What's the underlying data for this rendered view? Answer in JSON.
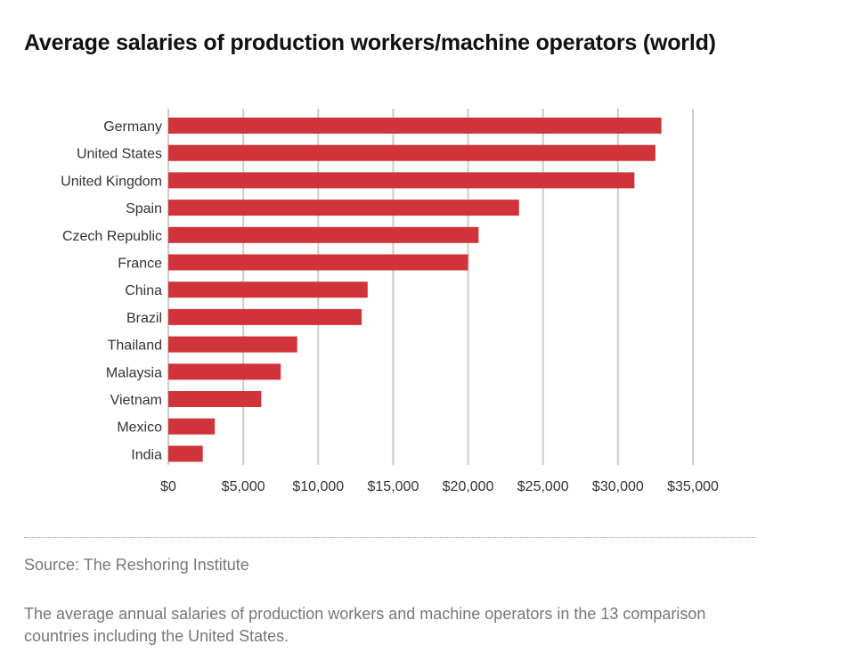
{
  "chart_data": {
    "type": "bar",
    "orientation": "horizontal",
    "title": "Average salaries of production workers/machine operators (world)",
    "categories": [
      "Germany",
      "United States",
      "United Kingdom",
      "Spain",
      "Czech Republic",
      "France",
      "China",
      "Brazil",
      "Thailand",
      "Malaysia",
      "Vietnam",
      "Mexico",
      "India"
    ],
    "values": [
      32900,
      32500,
      31100,
      23400,
      20700,
      20000,
      13300,
      12900,
      8600,
      7500,
      6200,
      3100,
      2300
    ],
    "xlim": [
      0,
      35000
    ],
    "xticks": [
      0,
      5000,
      10000,
      15000,
      20000,
      25000,
      30000,
      35000
    ],
    "xtick_labels": [
      "$0",
      "$5,000",
      "$10,000",
      "$15,000",
      "$20,000",
      "$25,000",
      "$30,000",
      "$35,000"
    ],
    "xlabel": "",
    "ylabel": "",
    "grid": "vertical",
    "bar_color": "#d0343a",
    "grid_color": "#cccccc"
  },
  "source": "Source: The Reshoring Institute",
  "caption": "The average annual salaries of production workers and machine operators in the 13 comparison countries including the United States."
}
